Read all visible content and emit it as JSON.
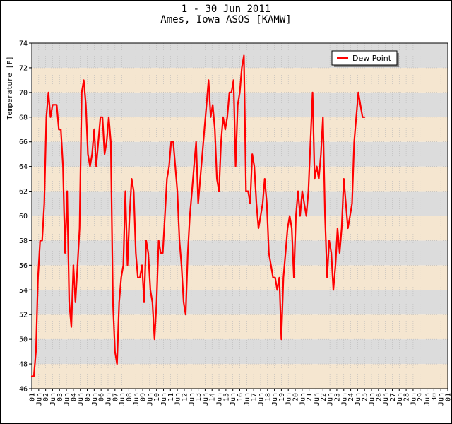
{
  "chart_data": {
    "type": "line",
    "title": "1 - 30 Jun 2011",
    "subtitle": "Ames, Iowa ASOS [KAMW]",
    "ylabel": "Temperature [F]",
    "ylim": [
      46,
      74
    ],
    "yticks": [
      46,
      48,
      50,
      52,
      54,
      56,
      58,
      60,
      62,
      64,
      66,
      68,
      70,
      72,
      74
    ],
    "xlim": [
      1,
      31
    ],
    "xticks": [
      {
        "day": 1,
        "label": "01"
      },
      {
        "day": 1.5,
        "label": "Jun"
      },
      {
        "day": 2,
        "label": "02"
      },
      {
        "day": 2.5,
        "label": "Jun"
      },
      {
        "day": 3,
        "label": "03"
      },
      {
        "day": 3.5,
        "label": "Jun"
      },
      {
        "day": 4,
        "label": "04"
      },
      {
        "day": 4.5,
        "label": "Jun"
      },
      {
        "day": 5,
        "label": "05"
      },
      {
        "day": 5.5,
        "label": "Jun"
      },
      {
        "day": 6,
        "label": "06"
      },
      {
        "day": 6.5,
        "label": "Jun"
      },
      {
        "day": 7,
        "label": "07"
      },
      {
        "day": 7.5,
        "label": "Jun"
      },
      {
        "day": 8,
        "label": "08"
      },
      {
        "day": 8.5,
        "label": "Jun"
      },
      {
        "day": 9,
        "label": "09"
      },
      {
        "day": 9.5,
        "label": "Jun"
      },
      {
        "day": 10,
        "label": "10"
      },
      {
        "day": 10.5,
        "label": "Jun"
      },
      {
        "day": 11,
        "label": "11"
      },
      {
        "day": 11.5,
        "label": "Jun"
      },
      {
        "day": 12,
        "label": "12"
      },
      {
        "day": 12.5,
        "label": "Jun"
      },
      {
        "day": 13,
        "label": "13"
      },
      {
        "day": 13.5,
        "label": "Jun"
      },
      {
        "day": 14,
        "label": "14"
      },
      {
        "day": 14.5,
        "label": "Jun"
      },
      {
        "day": 15,
        "label": "15"
      },
      {
        "day": 15.5,
        "label": "Jun"
      },
      {
        "day": 16,
        "label": "16"
      },
      {
        "day": 16.5,
        "label": "Jun"
      },
      {
        "day": 17,
        "label": "17"
      },
      {
        "day": 17.5,
        "label": "Jun"
      },
      {
        "day": 18,
        "label": "18"
      },
      {
        "day": 18.5,
        "label": "Jun"
      },
      {
        "day": 19,
        "label": "19"
      },
      {
        "day": 19.5,
        "label": "Jun"
      },
      {
        "day": 20,
        "label": "20"
      },
      {
        "day": 20.5,
        "label": "Jun"
      },
      {
        "day": 21,
        "label": "21"
      },
      {
        "day": 21.5,
        "label": "Jun"
      },
      {
        "day": 22,
        "label": "22"
      },
      {
        "day": 22.5,
        "label": "Jun"
      },
      {
        "day": 23,
        "label": "23"
      },
      {
        "day": 23.5,
        "label": "Jun"
      },
      {
        "day": 24,
        "label": "24"
      },
      {
        "day": 24.5,
        "label": "Jun"
      },
      {
        "day": 25,
        "label": "25"
      },
      {
        "day": 25.5,
        "label": "Jun"
      },
      {
        "day": 26,
        "label": "26"
      },
      {
        "day": 26.5,
        "label": "Jun"
      },
      {
        "day": 27,
        "label": "27"
      },
      {
        "day": 27.5,
        "label": "Jun"
      },
      {
        "day": 28,
        "label": "28"
      },
      {
        "day": 28.5,
        "label": "Jun"
      },
      {
        "day": 29,
        "label": "29"
      },
      {
        "day": 29.5,
        "label": "Jun"
      },
      {
        "day": 30,
        "label": "30"
      },
      {
        "day": 30.5,
        "label": "Jun"
      },
      {
        "day": 31,
        "label": "01"
      }
    ],
    "grid": true,
    "band_colors": [
      "#dcdcdc",
      "#f5e6d0"
    ],
    "legend_position": "top-right",
    "series": [
      {
        "name": "Dew Point",
        "color": "#ff0000",
        "points": [
          [
            1.0,
            47
          ],
          [
            1.15,
            47
          ],
          [
            1.3,
            49
          ],
          [
            1.45,
            55
          ],
          [
            1.6,
            58
          ],
          [
            1.75,
            58
          ],
          [
            1.9,
            61
          ],
          [
            2.05,
            68
          ],
          [
            2.2,
            70
          ],
          [
            2.35,
            68
          ],
          [
            2.5,
            69
          ],
          [
            2.65,
            69
          ],
          [
            2.8,
            69
          ],
          [
            2.95,
            67
          ],
          [
            3.1,
            67
          ],
          [
            3.25,
            64
          ],
          [
            3.4,
            57
          ],
          [
            3.55,
            62
          ],
          [
            3.7,
            53
          ],
          [
            3.85,
            51
          ],
          [
            4.0,
            56
          ],
          [
            4.15,
            53
          ],
          [
            4.3,
            56
          ],
          [
            4.45,
            59
          ],
          [
            4.6,
            70
          ],
          [
            4.75,
            71
          ],
          [
            4.9,
            69
          ],
          [
            5.05,
            65
          ],
          [
            5.2,
            64
          ],
          [
            5.35,
            65
          ],
          [
            5.5,
            67
          ],
          [
            5.65,
            64
          ],
          [
            5.8,
            66
          ],
          [
            5.95,
            68
          ],
          [
            6.1,
            68
          ],
          [
            6.25,
            65
          ],
          [
            6.4,
            66
          ],
          [
            6.55,
            68
          ],
          [
            6.7,
            66
          ],
          [
            6.85,
            53
          ],
          [
            7.0,
            49
          ],
          [
            7.15,
            48
          ],
          [
            7.3,
            53
          ],
          [
            7.45,
            55
          ],
          [
            7.6,
            56
          ],
          [
            7.75,
            62
          ],
          [
            7.9,
            56
          ],
          [
            8.05,
            60
          ],
          [
            8.2,
            63
          ],
          [
            8.35,
            62
          ],
          [
            8.5,
            57
          ],
          [
            8.65,
            55
          ],
          [
            8.8,
            55
          ],
          [
            8.95,
            56
          ],
          [
            9.1,
            53
          ],
          [
            9.25,
            58
          ],
          [
            9.4,
            57
          ],
          [
            9.55,
            54
          ],
          [
            9.7,
            53
          ],
          [
            9.85,
            50
          ],
          [
            10.0,
            53
          ],
          [
            10.15,
            58
          ],
          [
            10.3,
            57
          ],
          [
            10.45,
            57
          ],
          [
            10.6,
            60
          ],
          [
            10.75,
            63
          ],
          [
            10.9,
            64
          ],
          [
            11.05,
            66
          ],
          [
            11.2,
            66
          ],
          [
            11.35,
            64
          ],
          [
            11.5,
            62
          ],
          [
            11.65,
            58
          ],
          [
            11.8,
            56
          ],
          [
            11.95,
            53
          ],
          [
            12.1,
            52
          ],
          [
            12.25,
            57
          ],
          [
            12.4,
            60
          ],
          [
            12.55,
            62
          ],
          [
            12.7,
            64
          ],
          [
            12.85,
            66
          ],
          [
            13.0,
            61
          ],
          [
            13.15,
            63
          ],
          [
            13.3,
            65
          ],
          [
            13.45,
            67
          ],
          [
            13.6,
            69
          ],
          [
            13.75,
            71
          ],
          [
            13.9,
            68
          ],
          [
            14.05,
            69
          ],
          [
            14.2,
            67
          ],
          [
            14.35,
            63
          ],
          [
            14.5,
            62
          ],
          [
            14.65,
            66
          ],
          [
            14.8,
            68
          ],
          [
            14.95,
            67
          ],
          [
            15.1,
            68
          ],
          [
            15.25,
            70
          ],
          [
            15.4,
            70
          ],
          [
            15.55,
            71
          ],
          [
            15.7,
            64
          ],
          [
            15.85,
            69
          ],
          [
            16.0,
            70
          ],
          [
            16.15,
            72
          ],
          [
            16.3,
            73
          ],
          [
            16.45,
            62
          ],
          [
            16.6,
            62
          ],
          [
            16.75,
            61
          ],
          [
            16.9,
            65
          ],
          [
            17.05,
            64
          ],
          [
            17.2,
            61
          ],
          [
            17.35,
            59
          ],
          [
            17.5,
            60
          ],
          [
            17.65,
            61
          ],
          [
            17.8,
            63
          ],
          [
            17.95,
            61
          ],
          [
            18.1,
            57
          ],
          [
            18.25,
            56
          ],
          [
            18.4,
            55
          ],
          [
            18.55,
            55
          ],
          [
            18.7,
            54
          ],
          [
            18.85,
            55
          ],
          [
            19.0,
            50
          ],
          [
            19.15,
            55
          ],
          [
            19.3,
            57
          ],
          [
            19.45,
            59
          ],
          [
            19.6,
            60
          ],
          [
            19.75,
            59
          ],
          [
            19.9,
            55
          ],
          [
            20.05,
            60
          ],
          [
            20.2,
            62
          ],
          [
            20.35,
            60
          ],
          [
            20.5,
            62
          ],
          [
            20.65,
            61
          ],
          [
            20.8,
            60
          ],
          [
            20.95,
            62
          ],
          [
            21.1,
            66
          ],
          [
            21.25,
            70
          ],
          [
            21.4,
            63
          ],
          [
            21.55,
            64
          ],
          [
            21.7,
            63
          ],
          [
            21.85,
            65
          ],
          [
            22.0,
            68
          ],
          [
            22.15,
            60
          ],
          [
            22.3,
            55
          ],
          [
            22.45,
            58
          ],
          [
            22.6,
            57
          ],
          [
            22.75,
            54
          ],
          [
            22.9,
            56
          ],
          [
            23.05,
            59
          ],
          [
            23.2,
            57
          ],
          [
            23.35,
            59
          ],
          [
            23.5,
            63
          ],
          [
            23.65,
            61
          ],
          [
            23.8,
            59
          ],
          [
            23.95,
            60
          ],
          [
            24.1,
            61
          ],
          [
            24.25,
            66
          ],
          [
            24.4,
            68
          ],
          [
            24.55,
            70
          ],
          [
            24.7,
            69
          ],
          [
            24.85,
            68
          ],
          [
            25.0,
            68
          ]
        ]
      }
    ]
  }
}
